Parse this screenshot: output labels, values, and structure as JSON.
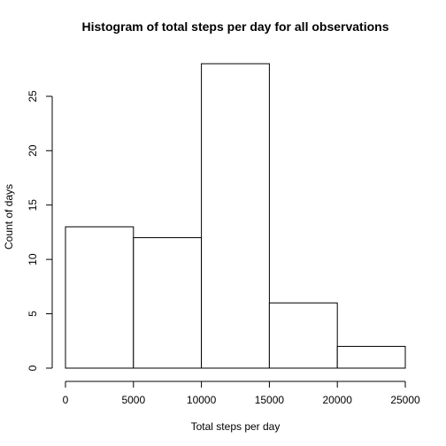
{
  "chart_data": {
    "type": "bar",
    "title": "Histogram of total steps per day for all observations",
    "xlabel": "Total steps per day",
    "ylabel": "Count of days",
    "bins": [
      {
        "from": 0,
        "to": 5000,
        "count": 13
      },
      {
        "from": 5000,
        "to": 10000,
        "count": 12
      },
      {
        "from": 10000,
        "to": 15000,
        "count": 28
      },
      {
        "from": 15000,
        "to": 20000,
        "count": 6
      },
      {
        "from": 20000,
        "to": 25000,
        "count": 2
      }
    ],
    "xlim": [
      0,
      25000
    ],
    "ylim": [
      0,
      28
    ],
    "x_ticks": [
      0,
      5000,
      10000,
      15000,
      20000,
      25000
    ],
    "y_ticks": [
      0,
      5,
      10,
      15,
      20,
      25
    ],
    "bar_fill": "#ffffff",
    "bar_stroke": "#000000",
    "grid": false
  }
}
